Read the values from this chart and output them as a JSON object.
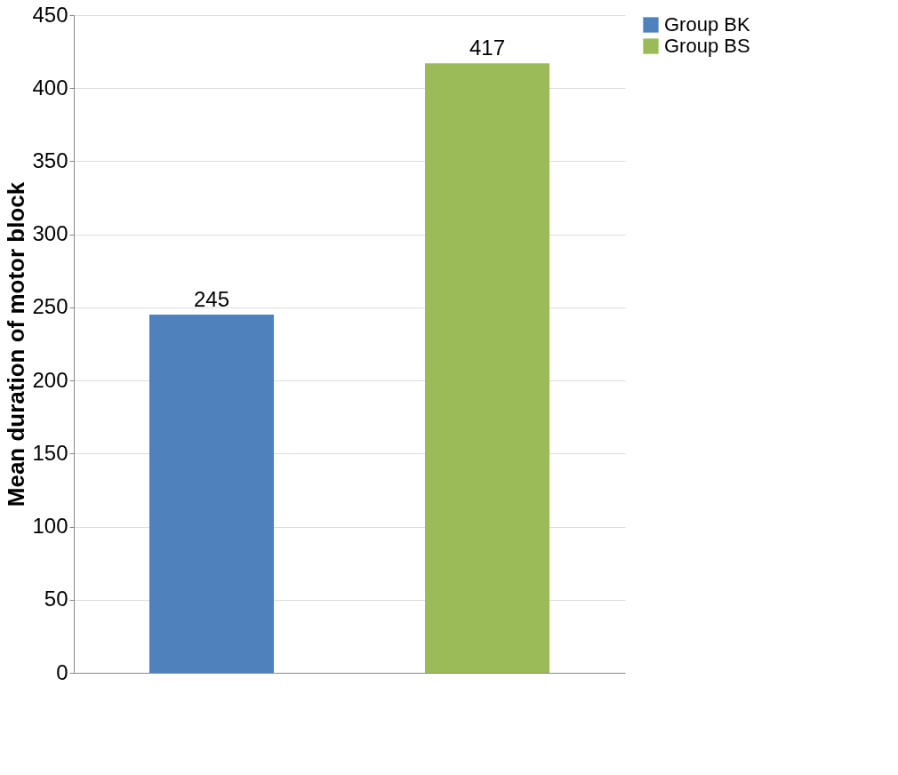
{
  "chart_data": {
    "type": "bar",
    "ylabel": "Mean duration of motor block",
    "categories": [
      null,
      null
    ],
    "series": [
      {
        "name": "Group BK",
        "color": "#4f81bd",
        "values": [
          245,
          null
        ]
      },
      {
        "name": "Group BS",
        "color": "#9bbb59",
        "values": [
          null,
          417
        ]
      }
    ],
    "ylim": [
      0,
      450
    ],
    "yticks": [
      0,
      50,
      100,
      150,
      200,
      250,
      300,
      350,
      400,
      450
    ],
    "grid": "y",
    "legend": "right",
    "data_labels": true,
    "tick_labels": "y"
  }
}
